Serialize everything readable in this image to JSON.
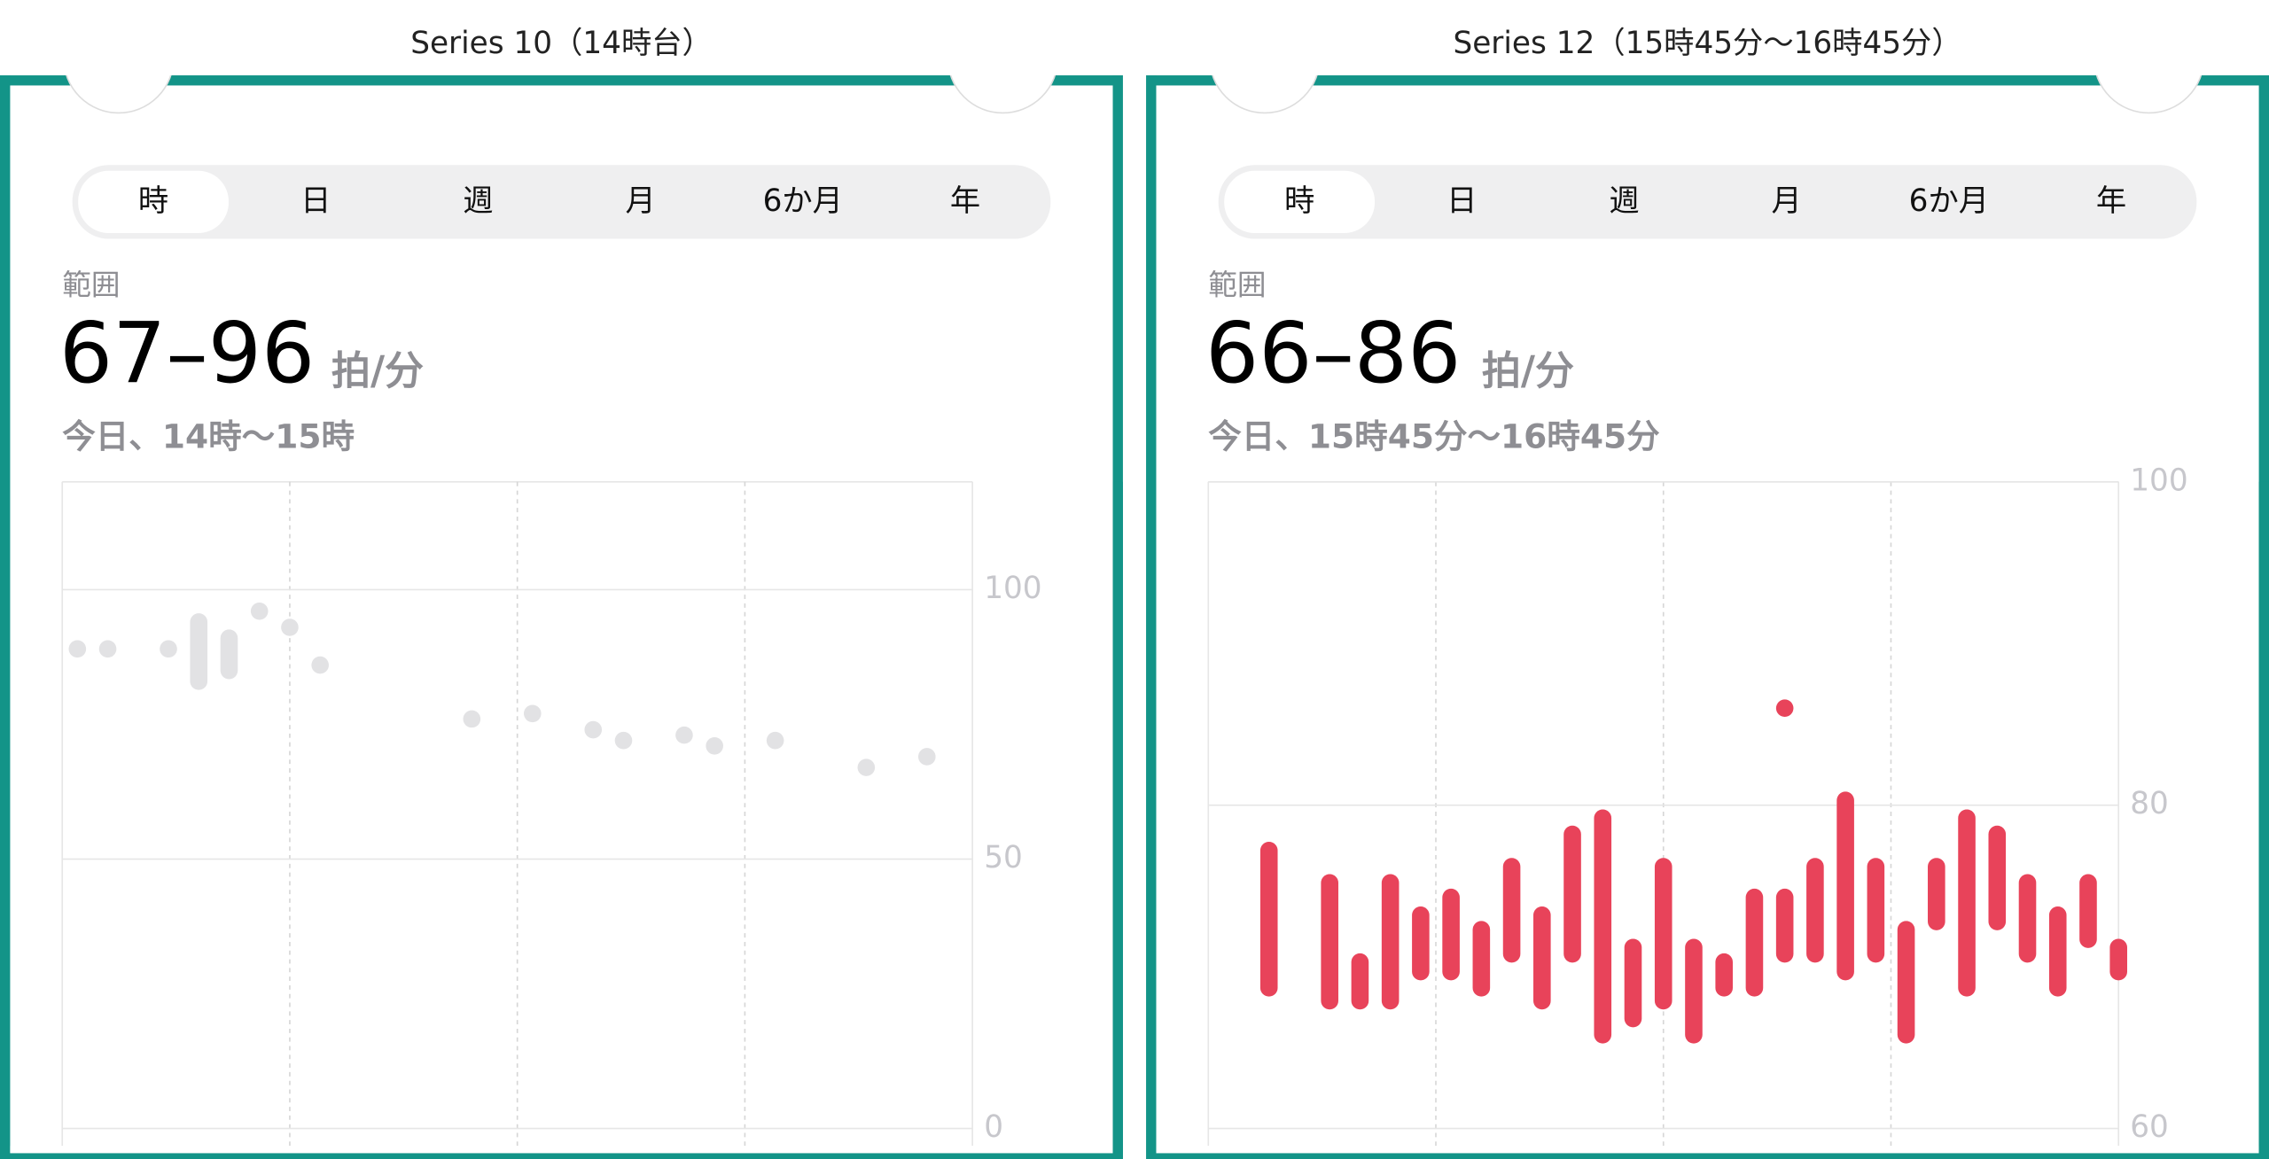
{
  "panels": [
    {
      "caption": "Series 10（14時台）",
      "tabs": [
        "時",
        "日",
        "週",
        "月",
        "6か月",
        "年"
      ],
      "range_label": "範囲",
      "range": "67–96",
      "unit": "拍/分",
      "period": "今日、14時〜15時"
    },
    {
      "caption": "Series 12（15時45分〜16時45分）",
      "tabs": [
        "時",
        "日",
        "週",
        "月",
        "6か月",
        "年"
      ],
      "range_label": "範囲",
      "range": "66–86",
      "unit": "拍/分",
      "period": "今日、15時45分〜16時45分"
    }
  ],
  "chart_data": [
    {
      "type": "range",
      "color": "#e2e2e4",
      "xlim": [
        0,
        60
      ],
      "ylim": [
        0,
        120
      ],
      "yticks": [
        0,
        50,
        100
      ],
      "grid": true,
      "x": [
        1,
        3,
        7,
        9,
        11,
        13,
        15,
        17,
        27,
        31,
        35,
        37,
        41,
        43,
        47,
        53,
        57
      ],
      "low": [
        89,
        89,
        89,
        83,
        85,
        96,
        93,
        86,
        76,
        77,
        74,
        72,
        73,
        71,
        72,
        67,
        69
      ],
      "high": [
        89,
        89,
        89,
        94,
        91,
        96,
        93,
        86,
        76,
        77,
        74,
        72,
        73,
        71,
        72,
        67,
        69
      ]
    },
    {
      "type": "range",
      "color": "#e8435a",
      "xlim": [
        0,
        60
      ],
      "ylim": [
        60,
        100
      ],
      "yticks": [
        60,
        80,
        100
      ],
      "grid": true,
      "x": [
        4,
        8,
        10,
        12,
        14,
        16,
        18,
        20,
        22,
        24,
        26,
        28,
        30,
        32,
        34,
        36,
        38,
        38,
        40,
        42,
        44,
        46,
        48,
        50,
        52,
        54,
        56,
        58,
        60
      ],
      "low": [
        68.7,
        67.9,
        67.9,
        67.9,
        69.7,
        69.7,
        68.7,
        70.8,
        67.9,
        70.8,
        65.8,
        66.8,
        67.9,
        65.8,
        68.7,
        68.7,
        70.8,
        86,
        70.8,
        69.7,
        70.8,
        65.8,
        72.8,
        68.7,
        72.8,
        70.8,
        68.7,
        71.7,
        69.7
      ],
      "high": [
        77.2,
        75.2,
        70.3,
        75.2,
        73.2,
        74.3,
        72.3,
        76.2,
        73.2,
        78.2,
        79.2,
        71.2,
        76.2,
        71.2,
        70.3,
        74.3,
        74.3,
        86,
        76.2,
        80.3,
        76.2,
        72.3,
        76.2,
        79.2,
        78.2,
        75.2,
        73.2,
        75.2,
        71.2
      ]
    }
  ]
}
